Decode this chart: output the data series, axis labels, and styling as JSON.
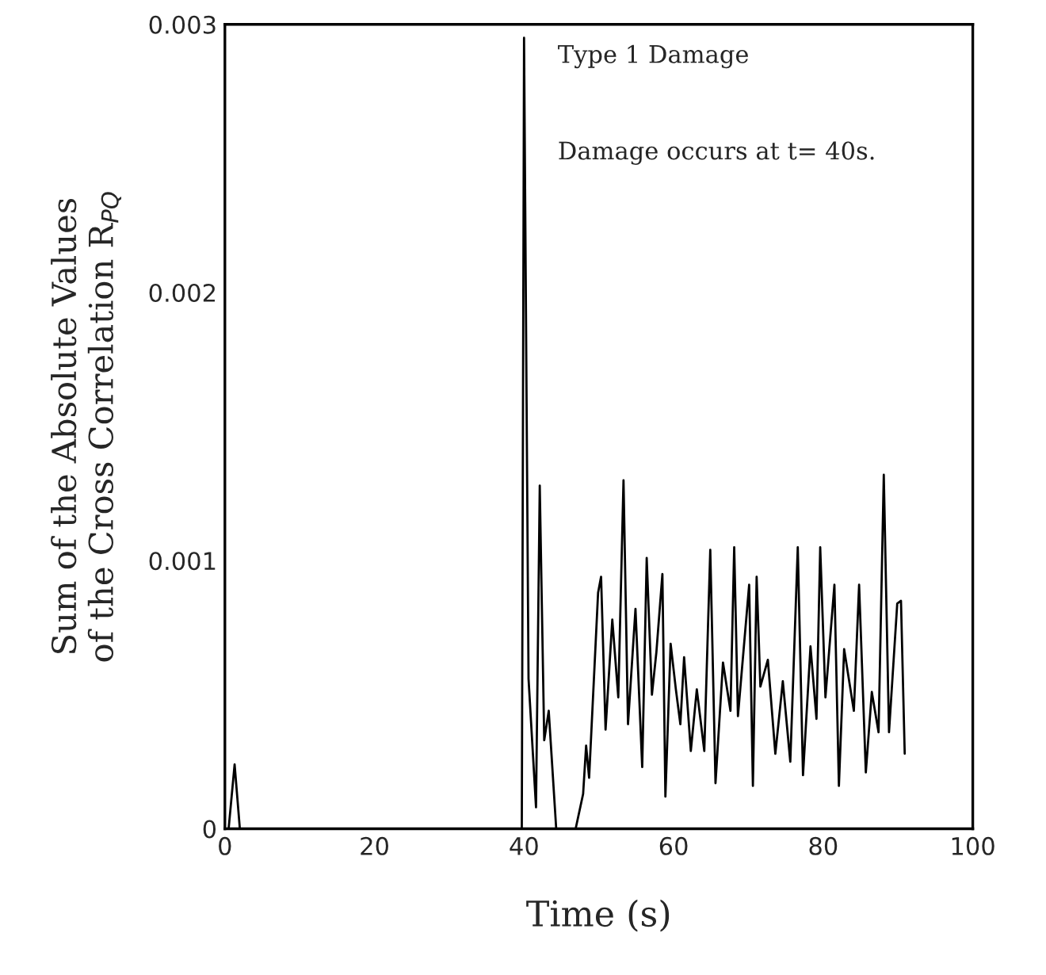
{
  "chart_data": {
    "type": "line",
    "xlabel": "Time (s)",
    "ylabel": "Sum of the Absolute Values\nof the Cross Correlation R$_{PQ}$",
    "annotations": [
      "Type 1 Damage",
      "Damage occurs at t= 40s."
    ],
    "xlim": [
      0,
      100
    ],
    "xticks": [
      0,
      20,
      40,
      60,
      80,
      100
    ],
    "ylim": [
      0,
      0.003
    ],
    "yticks": [
      {
        "value": 0,
        "label": "0"
      },
      0.001,
      0.002,
      0.003
    ],
    "grid": false,
    "marker": "none",
    "line_style": "solid",
    "series": [
      {
        "color": "#000000",
        "x": [
          0,
          0.5,
          1.3,
          2,
          39.7,
          40,
          40.6,
          41.6,
          42.1,
          42.7,
          43.3,
          44.3,
          46.9,
          47.9,
          48.3,
          48.7,
          49.9,
          50.3,
          50.9,
          51.8,
          52.6,
          53.3,
          53.9,
          54.9,
          55.8,
          56.4,
          57.1,
          57.7,
          58.5,
          58.9,
          59.6,
          60.3,
          60.9,
          61.4,
          62.3,
          63.1,
          64.1,
          64.9,
          65.6,
          66.6,
          67.6,
          68.1,
          68.6,
          70.1,
          70.6,
          71.1,
          71.6,
          72.6,
          73.6,
          74.6,
          75.6,
          76.6,
          77.3,
          78.3,
          79.1,
          79.6,
          80.3,
          81.5,
          82.1,
          82.8,
          84.1,
          84.8,
          85.7,
          86.5,
          87.4,
          88.1,
          88.8,
          89.9,
          90.4,
          90.9
        ],
        "values": [
          0,
          0,
          0.00024,
          0,
          0,
          0.00295,
          0.00056,
          8e-05,
          0.00128,
          0.00033,
          0.00044,
          0,
          0,
          0.00013,
          0.00031,
          0.00019,
          0.00088,
          0.00094,
          0.00037,
          0.00078,
          0.00049,
          0.0013,
          0.00039,
          0.00082,
          0.00023,
          0.00101,
          0.0005,
          0.00066,
          0.00095,
          0.00012,
          0.00069,
          0.00052,
          0.00039,
          0.00064,
          0.00029,
          0.00052,
          0.00029,
          0.00104,
          0.00017,
          0.00062,
          0.00044,
          0.00105,
          0.00042,
          0.00091,
          0.00016,
          0.00094,
          0.00053,
          0.00063,
          0.00028,
          0.00055,
          0.00025,
          0.00105,
          0.0002,
          0.00068,
          0.00041,
          0.00105,
          0.00049,
          0.00091,
          0.00016,
          0.00067,
          0.00044,
          0.00091,
          0.00021,
          0.00051,
          0.00036,
          0.00132,
          0.00036,
          0.00084,
          0.00085,
          0.00028
        ]
      }
    ]
  }
}
